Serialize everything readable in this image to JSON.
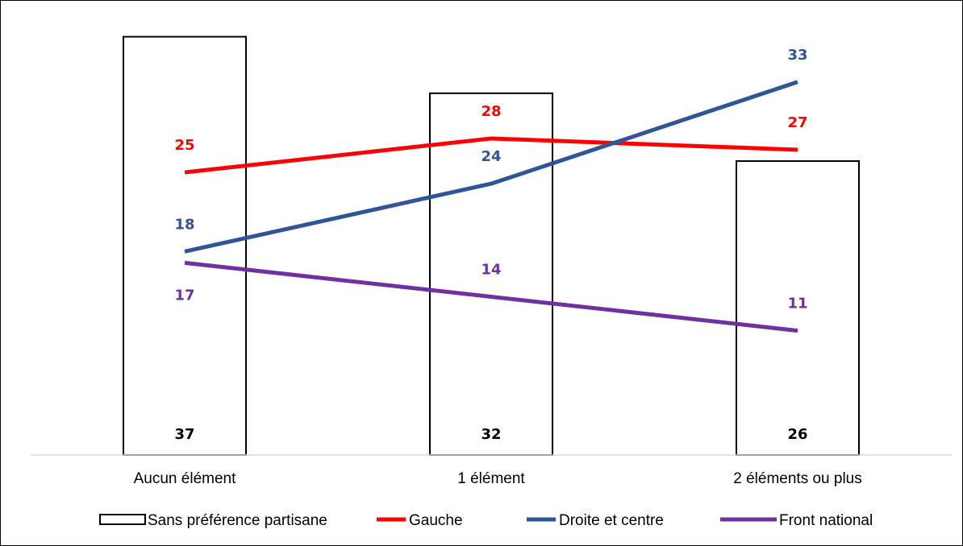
{
  "chart_data": {
    "type": "bar",
    "title": "",
    "xlabel": "",
    "ylabel": "",
    "categories": [
      "Aucun élément",
      "1 élément",
      "2 éléments ou plus"
    ],
    "ylim": [
      0,
      40
    ],
    "grid": false,
    "legend_position": "bottom",
    "series": [
      {
        "name": "Sans préférence partisane",
        "kind": "bar",
        "values": [
          37,
          32,
          26
        ],
        "color": "#000000",
        "fill": "#ffffff"
      },
      {
        "name": "Gauche",
        "kind": "line",
        "values": [
          25,
          28,
          27
        ],
        "color": "#ff0000"
      },
      {
        "name": "Droite et centre",
        "kind": "line",
        "values": [
          18,
          24,
          33
        ],
        "color": "#2f5597"
      },
      {
        "name": "Front national",
        "kind": "line",
        "values": [
          17,
          14,
          11
        ],
        "color": "#7030a0"
      }
    ]
  }
}
